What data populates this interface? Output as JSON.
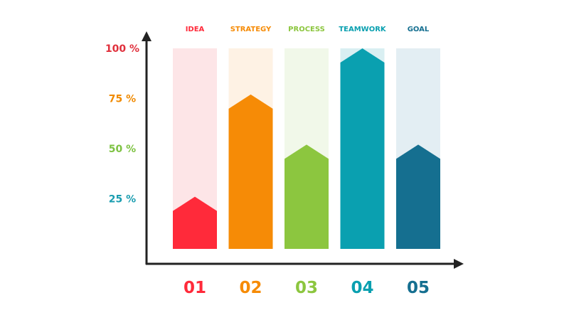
{
  "chart_data": {
    "type": "bar",
    "categories": [
      "IDEA",
      "STRATEGY",
      "PROCESS",
      "TEAMWORK",
      "GOAL"
    ],
    "numbers": [
      "01",
      "02",
      "03",
      "04",
      "05"
    ],
    "values": [
      26,
      77,
      52,
      100,
      52
    ],
    "colors": [
      "#ff2a3a",
      "#f68b06",
      "#8cc63f",
      "#0aa0b0",
      "#156f90"
    ],
    "track_colors": [
      "#fde5e7",
      "#fef2e4",
      "#f1f8e9",
      "#d9eff2",
      "#e3eef3"
    ],
    "yticks": [
      {
        "value": 100,
        "label": "100 %",
        "color": "#e0303c"
      },
      {
        "value": 75,
        "label": "75 %",
        "color": "#f08a00"
      },
      {
        "value": 50,
        "label": "50 %",
        "color": "#7dc242"
      },
      {
        "value": 25,
        "label": "25 %",
        "color": "#1a9db0"
      }
    ],
    "ylim": [
      0,
      100
    ],
    "grid": false,
    "legend": "none"
  }
}
